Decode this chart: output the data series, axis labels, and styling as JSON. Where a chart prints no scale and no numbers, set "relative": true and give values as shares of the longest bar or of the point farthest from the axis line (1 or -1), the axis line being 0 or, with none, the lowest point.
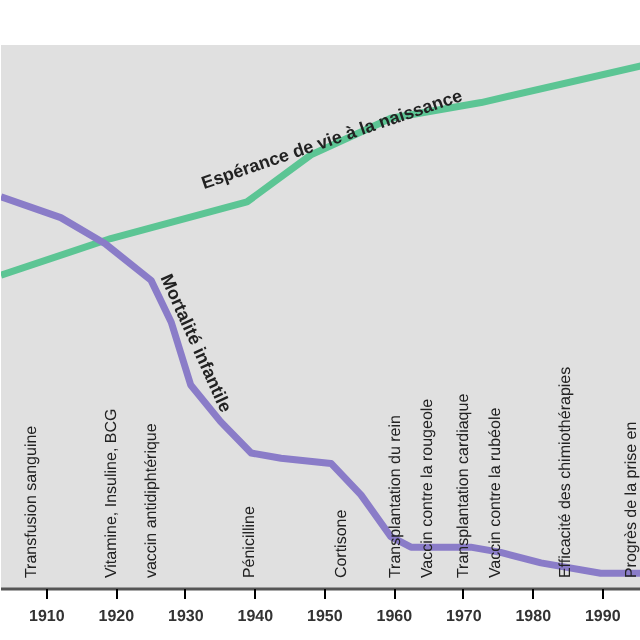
{
  "chart_data": {
    "type": "line",
    "relative": true,
    "xlim": [
      1903.4,
      1995.5
    ],
    "xticks": [
      1910,
      1920,
      1930,
      1940,
      1950,
      1960,
      1970,
      1980,
      1990
    ],
    "tick_labels": "x",
    "series": [
      {
        "name": "Espérance de vie à la naissance",
        "color": "#5cc594",
        "x": [
          1903.4,
          1919.2,
          1938.8,
          1948,
          1959.5,
          1972.5,
          1995.5
        ],
        "values": [
          0.6,
          0.67,
          0.74,
          0.83,
          0.9,
          0.93,
          1.0
        ]
      },
      {
        "name": "Mortalité infantile",
        "color": "#8a7cc8",
        "x": [
          1903.4,
          1912,
          1918.4,
          1925,
          1927.9,
          1930.7,
          1935,
          1939.4,
          1943.7,
          1950.9,
          1955.2,
          1959.5,
          1962.4,
          1971,
          1975.3,
          1981.1,
          1989.7,
          1995.5
        ],
        "values": [
          0.75,
          0.71,
          0.66,
          0.59,
          0.51,
          0.39,
          0.32,
          0.26,
          0.25,
          0.24,
          0.18,
          0.1,
          0.08,
          0.08,
          0.07,
          0.05,
          0.03,
          0.03
        ]
      }
    ],
    "annotations": [
      "Transfusion sanguine",
      "Vitamine, Insuline, BCG",
      "vaccin antidiphtérique",
      "Pénicilline",
      "Cortisone",
      "Transplantation du rein",
      "Vaccin contre la rougeole",
      "Transplantation cardiaque",
      "Vaccin contre la rubéole",
      "Efficacité des chimiothérapies",
      "Progrès de la prise en"
    ]
  }
}
